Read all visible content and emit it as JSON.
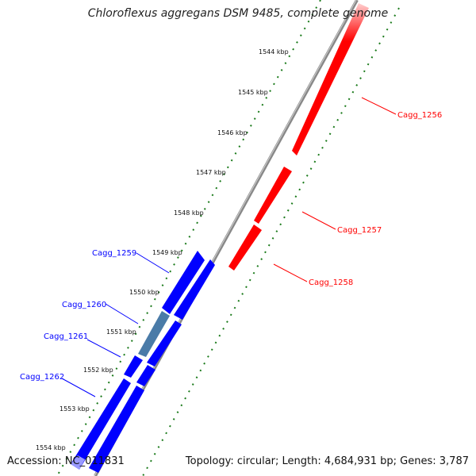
{
  "title": "Chloroflexus aggregans DSM 9485, complete genome",
  "accession": "Accession: NC_011831",
  "summary": "Topology: circular; Length: 4,684,931 bp; Genes: 3,787",
  "kbp_labels": [
    "1544 kbp",
    "1545 kbp",
    "1546 kbp",
    "1547 kbp",
    "1548 kbp",
    "1549 kbp",
    "1550 kbp",
    "1551 kbp",
    "1552 kbp",
    "1553 kbp",
    "1554 kbp"
  ],
  "colors": {
    "forward_strand": "#ff0000",
    "reverse_strand": "#0000ff",
    "highlight": "#4a7ba8",
    "ticks": "#1a7a1a",
    "backbone": "#808080"
  },
  "forward_genes": [
    {
      "label": "Cagg_1256"
    },
    {
      "label": "Cagg_1257"
    },
    {
      "label": "Cagg_1258"
    }
  ],
  "reverse_genes": [
    {
      "label": "Cagg_1259"
    },
    {
      "label": "Cagg_1260"
    },
    {
      "label": "Cagg_1261"
    },
    {
      "label": "Cagg_1262"
    }
  ]
}
